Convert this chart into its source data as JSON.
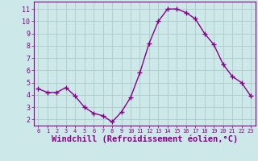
{
  "x": [
    0,
    1,
    2,
    3,
    4,
    5,
    6,
    7,
    8,
    9,
    10,
    11,
    12,
    13,
    14,
    15,
    16,
    17,
    18,
    19,
    20,
    21,
    22,
    23
  ],
  "y": [
    4.5,
    4.2,
    4.2,
    4.6,
    3.9,
    3.0,
    2.5,
    2.3,
    1.8,
    2.6,
    3.8,
    5.8,
    8.2,
    10.0,
    11.0,
    11.0,
    10.7,
    10.2,
    9.0,
    8.1,
    6.5,
    5.5,
    5.0,
    3.9
  ],
  "line_color": "#880088",
  "marker": "+",
  "marker_size": 4,
  "marker_lw": 1.0,
  "xlabel": "Windchill (Refroidissement éolien,°C)",
  "xlabel_fontsize": 7.5,
  "xtick_labels": [
    "0",
    "1",
    "2",
    "3",
    "4",
    "5",
    "6",
    "7",
    "8",
    "9",
    "10",
    "11",
    "12",
    "13",
    "14",
    "15",
    "16",
    "17",
    "18",
    "19",
    "20",
    "21",
    "22",
    "23"
  ],
  "ytick_vals": [
    2,
    3,
    4,
    5,
    6,
    7,
    8,
    9,
    10,
    11
  ],
  "ytick_labels": [
    "2",
    "3",
    "4",
    "5",
    "6",
    "7",
    "8",
    "9",
    "10",
    "11"
  ],
  "ylim": [
    1.5,
    11.6
  ],
  "xlim": [
    -0.5,
    23.5
  ],
  "bg_color": "#cce8e8",
  "grid_color": "#b0c8c8",
  "tick_color": "#880088",
  "label_color": "#880088",
  "spine_color": "#880088",
  "xtick_fontsize": 5.0,
  "ytick_fontsize": 6.0,
  "linewidth": 1.0
}
